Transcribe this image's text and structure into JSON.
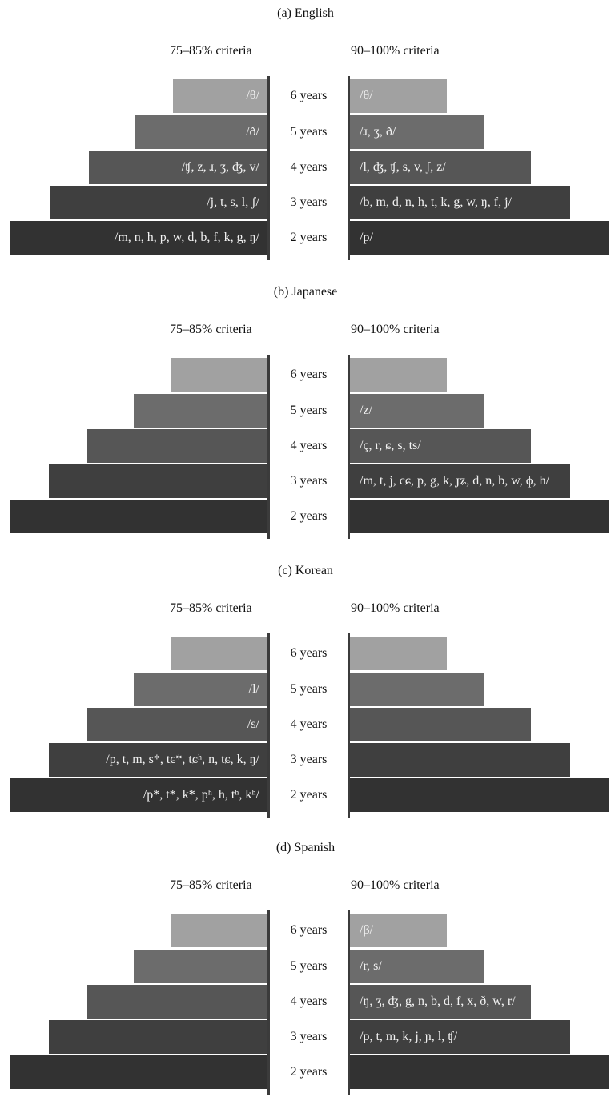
{
  "panels": [
    {
      "title": "(a) English",
      "left_label": "75–85% criteria",
      "right_label": "90–100% criteria",
      "rows": [
        {
          "age": "6 years",
          "left": "/θ/",
          "right": "/θ/"
        },
        {
          "age": "5 years",
          "left": "/ð/",
          "right": "/ɹ, ʒ, ð/"
        },
        {
          "age": "4 years",
          "left": "/ʧ, z, ɹ, ʒ, ʤ, v/",
          "right": "/l, ʤ, ʧ, s, v, ʃ, z/"
        },
        {
          "age": "3 years",
          "left": "/j, t, s, l, ʃ/",
          "right": "/b, m, d, n, h, t, k, g, w, ŋ, f, j/"
        },
        {
          "age": "2 years",
          "left": "/m, n, h, p, w, d, b, f, k, g, ŋ/",
          "right": "/p/"
        }
      ]
    },
    {
      "title": "(b) Japanese",
      "left_label": "75–85% criteria",
      "right_label": "90–100% criteria",
      "rows": [
        {
          "age": "6 years",
          "left": "",
          "right": ""
        },
        {
          "age": "5 years",
          "left": "",
          "right": "/z/"
        },
        {
          "age": "4 years",
          "left": "",
          "right": "/ç, r, ɕ, s, ts/"
        },
        {
          "age": "3 years",
          "left": "",
          "right": "/m, t, j, cɕ, p, g, k, ɟʑ, d, n, b, w, ɸ, h/"
        },
        {
          "age": "2 years",
          "left": "",
          "right": ""
        }
      ]
    },
    {
      "title": "(c) Korean",
      "left_label": "75–85% criteria",
      "right_label": "90–100% criteria",
      "rows": [
        {
          "age": "6 years",
          "left": "",
          "right": ""
        },
        {
          "age": "5 years",
          "left": "/l/",
          "right": ""
        },
        {
          "age": "4 years",
          "left": "/s/",
          "right": ""
        },
        {
          "age": "3 years",
          "left": "/p, t, m, s*, tɕ*, tɕʰ, n, tɕ, k, ŋ/",
          "right": ""
        },
        {
          "age": "2 years",
          "left": "/p*, t*, k*, pʰ, h, tʰ, kʰ/",
          "right": ""
        }
      ]
    },
    {
      "title": "(d) Spanish",
      "left_label": "75–85% criteria",
      "right_label": "90–100% criteria",
      "rows": [
        {
          "age": "6 years",
          "left": "",
          "right": "/β/"
        },
        {
          "age": "5 years",
          "left": "",
          "right": "/r, s/"
        },
        {
          "age": "4 years",
          "left": "",
          "right": "/ŋ, ʒ, ʤ, g, n, b, d, f, x, ð, w, r/"
        },
        {
          "age": "3 years",
          "left": "",
          "right": "/p, t, m, k, j, ɲ, l, ʧ/"
        },
        {
          "age": "2 years",
          "left": "",
          "right": ""
        }
      ]
    }
  ]
}
